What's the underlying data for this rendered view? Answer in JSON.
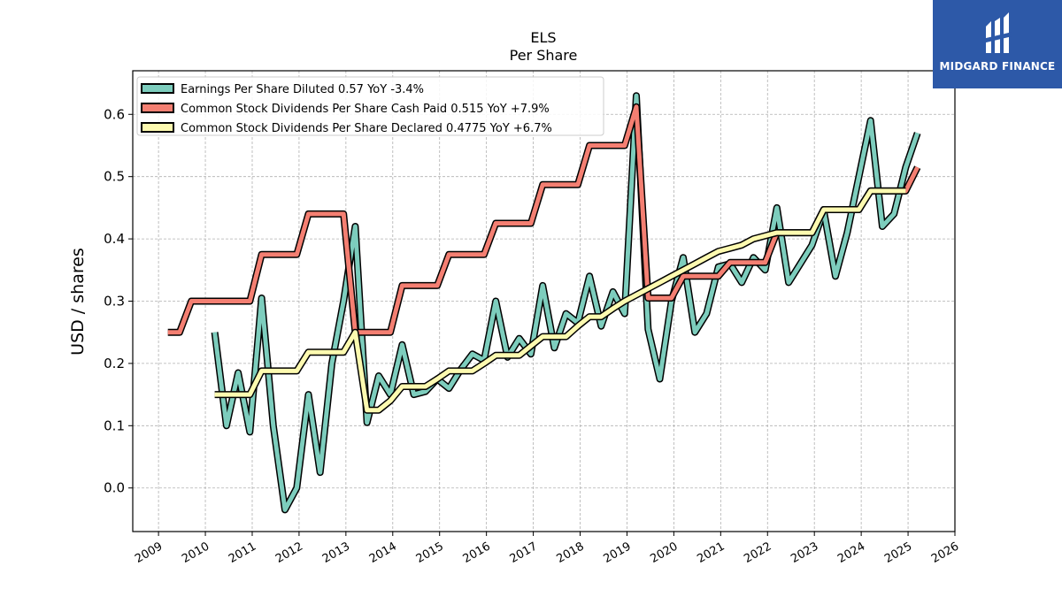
{
  "chart_data": {
    "type": "line",
    "title": "ELS",
    "subtitle": "Per  Share",
    "xlabel": "",
    "ylabel": "USD / shares",
    "xlim": [
      2008.45,
      2026.0
    ],
    "ylim": [
      -0.07,
      0.67
    ],
    "grid": true,
    "legend_position": "top-left",
    "x_ticks": [
      "2009",
      "2010",
      "2011",
      "2012",
      "2013",
      "2014",
      "2015",
      "2016",
      "2017",
      "2018",
      "2019",
      "2020",
      "2021",
      "2022",
      "2023",
      "2024",
      "2025",
      "2026"
    ],
    "y_ticks": [
      "0.0",
      "0.1",
      "0.2",
      "0.3",
      "0.4",
      "0.5",
      "0.6"
    ],
    "series": [
      {
        "name": "Earnings Per Share Diluted  0.57 YoY -3.4%",
        "color": "#7dcdbd",
        "points": [
          [
            2010.2,
            0.25
          ],
          [
            2010.45,
            0.1
          ],
          [
            2010.7,
            0.185
          ],
          [
            2010.95,
            0.09
          ],
          [
            2011.2,
            0.305
          ],
          [
            2011.45,
            0.1
          ],
          [
            2011.7,
            -0.035
          ],
          [
            2011.95,
            0.0
          ],
          [
            2012.2,
            0.15
          ],
          [
            2012.45,
            0.025
          ],
          [
            2012.7,
            0.2
          ],
          [
            2012.95,
            0.3
          ],
          [
            2013.2,
            0.42
          ],
          [
            2013.45,
            0.105
          ],
          [
            2013.7,
            0.18
          ],
          [
            2013.95,
            0.15
          ],
          [
            2014.2,
            0.23
          ],
          [
            2014.45,
            0.15
          ],
          [
            2014.7,
            0.155
          ],
          [
            2014.95,
            0.175
          ],
          [
            2015.2,
            0.16
          ],
          [
            2015.45,
            0.19
          ],
          [
            2015.7,
            0.215
          ],
          [
            2015.95,
            0.205
          ],
          [
            2016.2,
            0.3
          ],
          [
            2016.45,
            0.21
          ],
          [
            2016.7,
            0.24
          ],
          [
            2016.95,
            0.215
          ],
          [
            2017.2,
            0.325
          ],
          [
            2017.45,
            0.225
          ],
          [
            2017.7,
            0.28
          ],
          [
            2017.95,
            0.265
          ],
          [
            2018.2,
            0.34
          ],
          [
            2018.45,
            0.26
          ],
          [
            2018.7,
            0.315
          ],
          [
            2018.95,
            0.28
          ],
          [
            2019.2,
            0.63
          ],
          [
            2019.45,
            0.255
          ],
          [
            2019.7,
            0.175
          ],
          [
            2019.95,
            0.3
          ],
          [
            2020.2,
            0.37
          ],
          [
            2020.45,
            0.25
          ],
          [
            2020.7,
            0.28
          ],
          [
            2020.95,
            0.355
          ],
          [
            2021.2,
            0.36
          ],
          [
            2021.45,
            0.33
          ],
          [
            2021.7,
            0.37
          ],
          [
            2021.95,
            0.35
          ],
          [
            2022.2,
            0.45
          ],
          [
            2022.45,
            0.33
          ],
          [
            2022.7,
            0.36
          ],
          [
            2022.95,
            0.39
          ],
          [
            2023.2,
            0.445
          ],
          [
            2023.45,
            0.34
          ],
          [
            2023.7,
            0.41
          ],
          [
            2023.95,
            0.5
          ],
          [
            2024.2,
            0.59
          ],
          [
            2024.45,
            0.42
          ],
          [
            2024.7,
            0.44
          ],
          [
            2024.95,
            0.515
          ],
          [
            2025.2,
            0.57
          ]
        ]
      },
      {
        "name": "Common Stock Dividends Per Share Cash Paid  0.515 YoY +7.9%",
        "color": "#f47f72",
        "points": [
          [
            2009.2,
            0.25
          ],
          [
            2009.45,
            0.25
          ],
          [
            2009.7,
            0.3
          ],
          [
            2009.95,
            0.3
          ],
          [
            2010.2,
            0.3
          ],
          [
            2010.45,
            0.3
          ],
          [
            2010.7,
            0.3
          ],
          [
            2010.95,
            0.3
          ],
          [
            2011.2,
            0.375
          ],
          [
            2011.45,
            0.375
          ],
          [
            2011.7,
            0.375
          ],
          [
            2011.95,
            0.375
          ],
          [
            2012.2,
            0.44
          ],
          [
            2012.45,
            0.44
          ],
          [
            2012.7,
            0.44
          ],
          [
            2012.95,
            0.44
          ],
          [
            2013.2,
            0.25
          ],
          [
            2013.45,
            0.25
          ],
          [
            2013.7,
            0.25
          ],
          [
            2013.95,
            0.25
          ],
          [
            2014.2,
            0.325
          ],
          [
            2014.45,
            0.325
          ],
          [
            2014.7,
            0.325
          ],
          [
            2014.95,
            0.325
          ],
          [
            2015.2,
            0.375
          ],
          [
            2015.45,
            0.375
          ],
          [
            2015.7,
            0.375
          ],
          [
            2015.95,
            0.375
          ],
          [
            2016.2,
            0.425
          ],
          [
            2016.45,
            0.425
          ],
          [
            2016.7,
            0.425
          ],
          [
            2016.95,
            0.425
          ],
          [
            2017.2,
            0.487
          ],
          [
            2017.45,
            0.487
          ],
          [
            2017.7,
            0.487
          ],
          [
            2017.95,
            0.487
          ],
          [
            2018.2,
            0.55
          ],
          [
            2018.45,
            0.55
          ],
          [
            2018.7,
            0.55
          ],
          [
            2018.95,
            0.55
          ],
          [
            2019.2,
            0.612
          ],
          [
            2019.45,
            0.305
          ],
          [
            2019.7,
            0.305
          ],
          [
            2019.95,
            0.305
          ],
          [
            2020.2,
            0.34
          ],
          [
            2020.45,
            0.34
          ],
          [
            2020.7,
            0.34
          ],
          [
            2020.95,
            0.34
          ],
          [
            2021.2,
            0.362
          ],
          [
            2021.45,
            0.362
          ],
          [
            2021.7,
            0.362
          ],
          [
            2021.95,
            0.362
          ],
          [
            2022.2,
            0.41
          ],
          [
            2022.45,
            0.41
          ],
          [
            2022.7,
            0.41
          ],
          [
            2022.95,
            0.41
          ],
          [
            2023.2,
            0.447
          ],
          [
            2023.45,
            0.447
          ],
          [
            2023.7,
            0.447
          ],
          [
            2023.95,
            0.447
          ],
          [
            2024.2,
            0.477
          ],
          [
            2024.45,
            0.477
          ],
          [
            2024.7,
            0.477
          ],
          [
            2024.95,
            0.477
          ],
          [
            2025.2,
            0.515
          ]
        ]
      },
      {
        "name": "Common Stock Dividends Per Share Declared  0.4775 YoY +6.7%",
        "color": "#fdfab0",
        "points": [
          [
            2010.2,
            0.15
          ],
          [
            2010.45,
            0.15
          ],
          [
            2010.7,
            0.15
          ],
          [
            2010.95,
            0.15
          ],
          [
            2011.2,
            0.188
          ],
          [
            2011.45,
            0.188
          ],
          [
            2011.7,
            0.188
          ],
          [
            2011.95,
            0.188
          ],
          [
            2012.2,
            0.218
          ],
          [
            2012.45,
            0.218
          ],
          [
            2012.7,
            0.218
          ],
          [
            2012.95,
            0.218
          ],
          [
            2013.2,
            0.25
          ],
          [
            2013.45,
            0.125
          ],
          [
            2013.7,
            0.125
          ],
          [
            2013.95,
            0.14
          ],
          [
            2014.2,
            0.163
          ],
          [
            2014.45,
            0.163
          ],
          [
            2014.7,
            0.163
          ],
          [
            2014.95,
            0.175
          ],
          [
            2015.2,
            0.188
          ],
          [
            2015.45,
            0.188
          ],
          [
            2015.7,
            0.188
          ],
          [
            2015.95,
            0.2
          ],
          [
            2016.2,
            0.213
          ],
          [
            2016.45,
            0.213
          ],
          [
            2016.7,
            0.213
          ],
          [
            2016.95,
            0.228
          ],
          [
            2017.2,
            0.243
          ],
          [
            2017.45,
            0.243
          ],
          [
            2017.7,
            0.243
          ],
          [
            2017.95,
            0.26
          ],
          [
            2018.2,
            0.275
          ],
          [
            2018.45,
            0.275
          ],
          [
            2018.7,
            0.288
          ],
          [
            2018.95,
            0.3
          ],
          [
            2019.2,
            0.31
          ],
          [
            2019.45,
            0.32
          ],
          [
            2019.7,
            0.33
          ],
          [
            2019.95,
            0.34
          ],
          [
            2020.2,
            0.35
          ],
          [
            2020.45,
            0.36
          ],
          [
            2020.7,
            0.37
          ],
          [
            2020.95,
            0.38
          ],
          [
            2021.2,
            0.385
          ],
          [
            2021.45,
            0.39
          ],
          [
            2021.7,
            0.4
          ],
          [
            2021.95,
            0.405
          ],
          [
            2022.2,
            0.41
          ],
          [
            2022.45,
            0.41
          ],
          [
            2022.7,
            0.41
          ],
          [
            2022.95,
            0.41
          ],
          [
            2023.2,
            0.447
          ],
          [
            2023.45,
            0.447
          ],
          [
            2023.7,
            0.447
          ],
          [
            2023.95,
            0.447
          ],
          [
            2024.2,
            0.477
          ],
          [
            2024.45,
            0.477
          ],
          [
            2024.7,
            0.477
          ],
          [
            2024.95,
            0.477
          ]
        ]
      }
    ]
  },
  "logo": {
    "text": "MIDGARD FINANCE",
    "icon": "midgard-logo-icon",
    "background": "#2d59a8"
  }
}
